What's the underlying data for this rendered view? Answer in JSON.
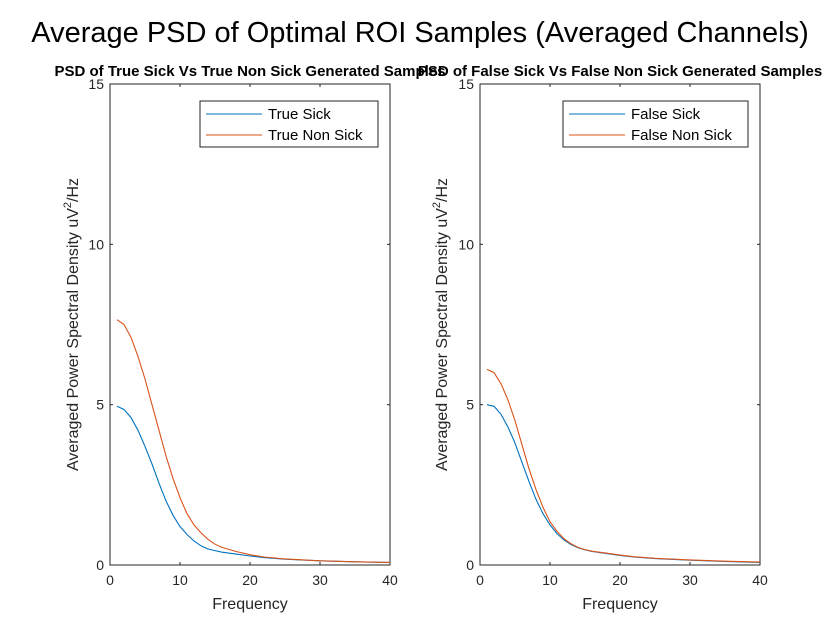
{
  "figure_title": "Average PSD of Optimal ROI Samples (Averaged Channels)",
  "colors": {
    "series1": "#0072BD",
    "series2": "#D95319",
    "axis": "#262626"
  },
  "chart_data": [
    {
      "type": "line",
      "title": "PSD of True Sick Vs True Non Sick Generated Samples",
      "xlabel": "Frequency",
      "ylabel_prefix": "Averaged Power Spectral Density uV",
      "ylabel_sup": "2",
      "ylabel_suffix": "/Hz",
      "xlim": [
        0,
        40
      ],
      "ylim": [
        0,
        15
      ],
      "xticks": [
        0,
        10,
        20,
        30,
        40
      ],
      "yticks": [
        0,
        5,
        10,
        15
      ],
      "grid": false,
      "legend_position": "top-right",
      "x": [
        1,
        2,
        3,
        4,
        5,
        6,
        7,
        8,
        9,
        10,
        11,
        12,
        13,
        14,
        15,
        16,
        18,
        20,
        22,
        25,
        30,
        35,
        40
      ],
      "series": [
        {
          "name": "True Sick",
          "values": [
            4.95,
            4.85,
            4.6,
            4.2,
            3.7,
            3.15,
            2.55,
            2.0,
            1.55,
            1.2,
            0.95,
            0.75,
            0.6,
            0.5,
            0.45,
            0.4,
            0.34,
            0.28,
            0.23,
            0.18,
            0.13,
            0.1,
            0.08
          ]
        },
        {
          "name": "True Non Sick",
          "values": [
            7.65,
            7.5,
            7.1,
            6.5,
            5.8,
            5.0,
            4.2,
            3.4,
            2.7,
            2.1,
            1.6,
            1.25,
            1.0,
            0.8,
            0.65,
            0.55,
            0.42,
            0.32,
            0.25,
            0.19,
            0.13,
            0.1,
            0.08
          ]
        }
      ]
    },
    {
      "type": "line",
      "title": "PSD of False Sick Vs False Non Sick Generated Samples",
      "xlabel": "Frequency",
      "ylabel_prefix": "Averaged Power Spectral Density uV",
      "ylabel_sup": "2",
      "ylabel_suffix": "/Hz",
      "xlim": [
        0,
        40
      ],
      "ylim": [
        0,
        15
      ],
      "xticks": [
        0,
        10,
        20,
        30,
        40
      ],
      "yticks": [
        0,
        5,
        10,
        15
      ],
      "grid": false,
      "legend_position": "top-right",
      "x": [
        1,
        2,
        3,
        4,
        5,
        6,
        7,
        8,
        9,
        10,
        11,
        12,
        13,
        14,
        15,
        16,
        18,
        20,
        22,
        25,
        30,
        35,
        40
      ],
      "series": [
        {
          "name": "False Sick",
          "values": [
            5.0,
            4.95,
            4.7,
            4.3,
            3.8,
            3.2,
            2.6,
            2.05,
            1.6,
            1.25,
            0.98,
            0.78,
            0.64,
            0.54,
            0.47,
            0.42,
            0.36,
            0.3,
            0.25,
            0.2,
            0.15,
            0.11,
            0.08
          ]
        },
        {
          "name": "False Non Sick",
          "values": [
            6.1,
            6.0,
            5.65,
            5.15,
            4.5,
            3.75,
            3.0,
            2.35,
            1.8,
            1.35,
            1.05,
            0.82,
            0.66,
            0.55,
            0.48,
            0.43,
            0.37,
            0.31,
            0.26,
            0.21,
            0.16,
            0.12,
            0.09
          ]
        }
      ]
    }
  ]
}
